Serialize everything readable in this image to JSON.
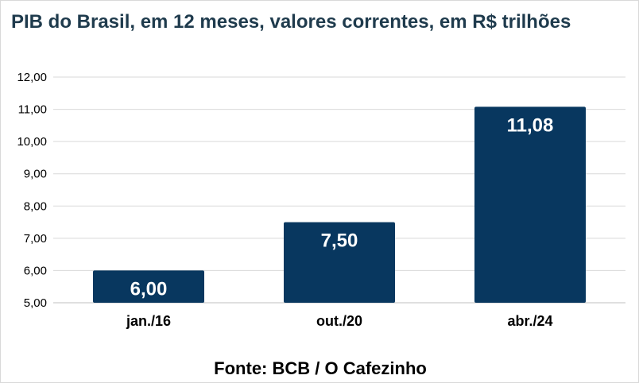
{
  "chart_data": {
    "type": "bar",
    "title": "PIB do Brasil, em 12 meses, valores correntes, em R$ trilhões",
    "categories": [
      "jan./16",
      "out./20",
      "abr./24"
    ],
    "values": [
      6.0,
      7.5,
      11.08
    ],
    "data_labels": [
      "6,00",
      "7,50",
      "11,08"
    ],
    "ylim": [
      5,
      12
    ],
    "yticks": [
      5,
      6,
      7,
      8,
      9,
      10,
      11,
      12
    ],
    "ytick_labels": [
      "5,00",
      "6,00",
      "7,00",
      "8,00",
      "9,00",
      "10,00",
      "11,00",
      "12,00"
    ],
    "xlabel": "",
    "ylabel": "",
    "grid": true,
    "legend": "none",
    "bar_color": "#08375f",
    "source": "Fonte: BCB / O Cafezinho"
  }
}
